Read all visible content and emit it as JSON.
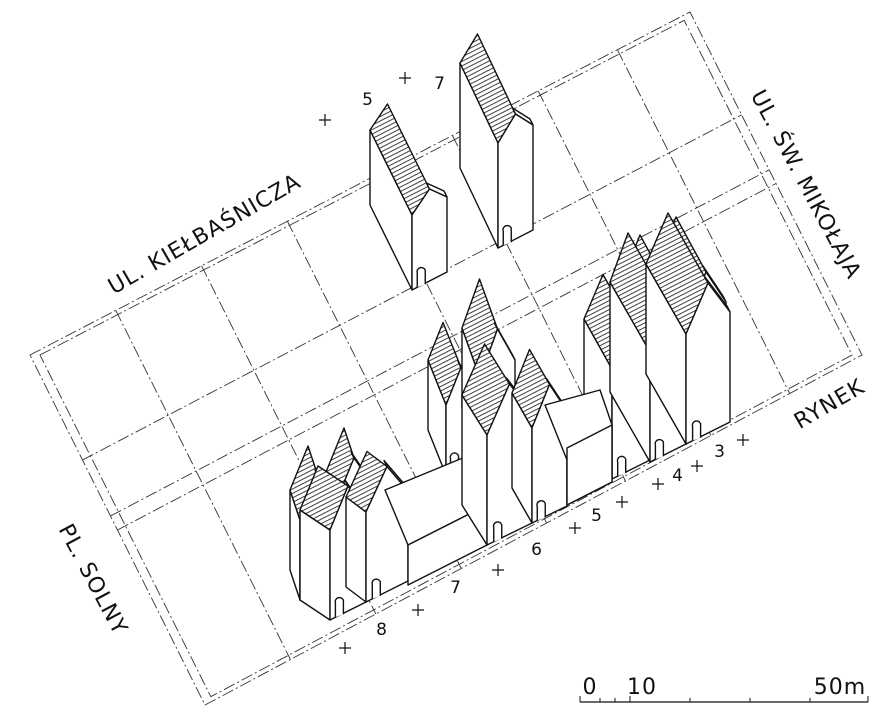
{
  "streets": {
    "north": "UL. KIEŁBAŚNICZA",
    "east": "UL. ŚW. MIKOŁAJA",
    "south": "RYNEK",
    "west": "PL. SOLNY"
  },
  "lots_north": [
    "5",
    "7"
  ],
  "lots_south": [
    "8",
    "7",
    "6",
    "5",
    "4",
    "3"
  ],
  "scale": {
    "labels": [
      "0",
      "10",
      "50m"
    ]
  }
}
